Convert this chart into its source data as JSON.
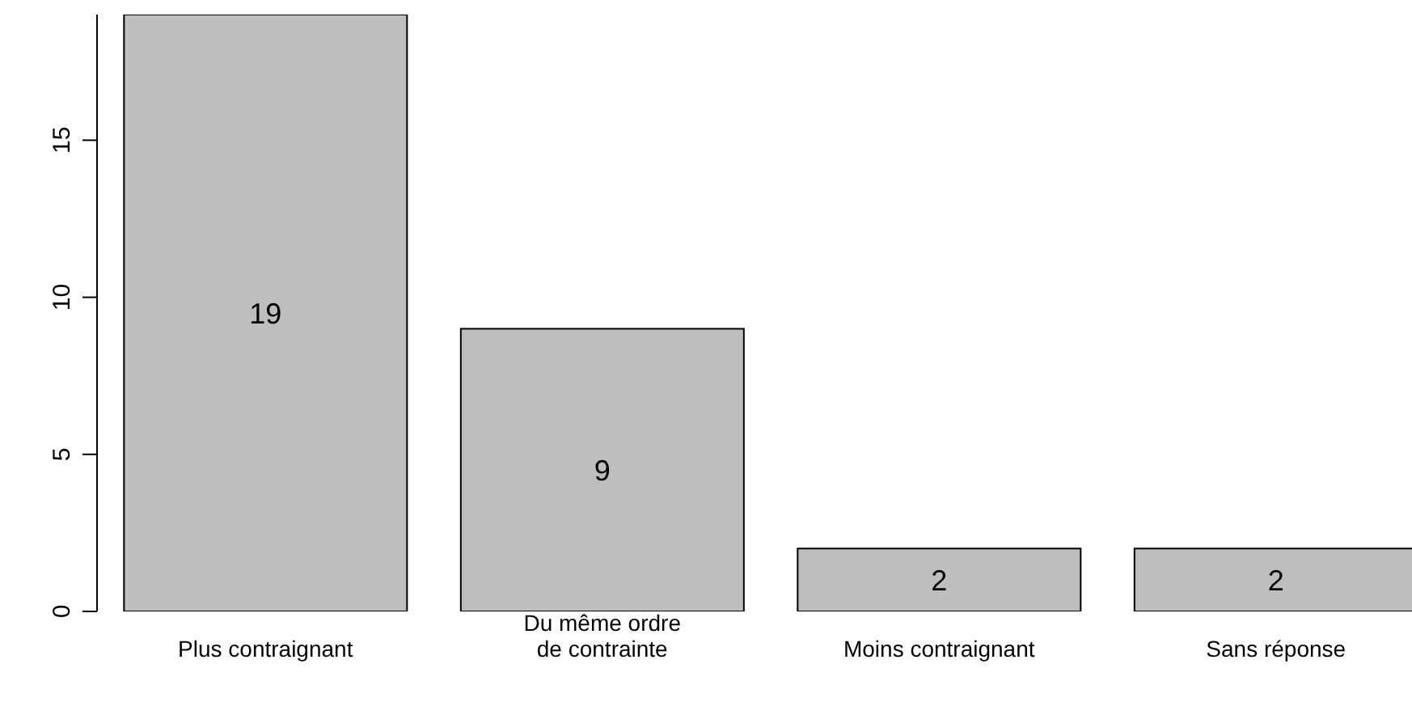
{
  "chart_data": {
    "type": "bar",
    "categories": [
      "Plus contraignant",
      "Du même ordre\nde contrainte",
      "Moins contraignant",
      "Sans réponse"
    ],
    "values": [
      19,
      9,
      2,
      2
    ],
    "color": "#bebebe",
    "ylim": [
      0,
      19
    ],
    "yticks": [
      0,
      5,
      10,
      15
    ],
    "data_labels": true,
    "grid": false
  }
}
